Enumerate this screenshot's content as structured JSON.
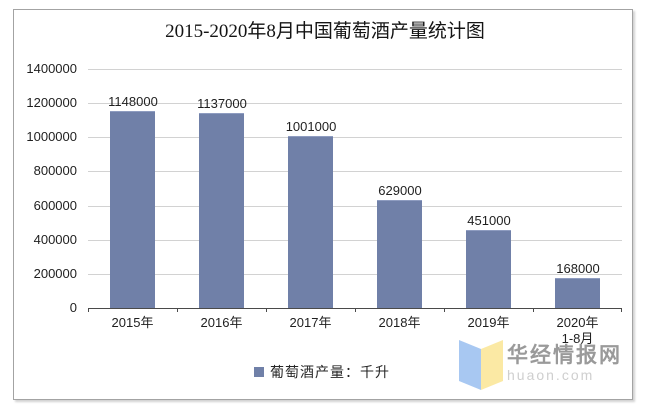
{
  "frame": {
    "border_color": "#a3a3a3"
  },
  "chart_data": {
    "type": "bar",
    "title": "2015-2020年8月中国葡萄酒产量统计图",
    "categories": [
      "2015年",
      "2016年",
      "2017年",
      "2018年",
      "2019年",
      "2020年\n1-8月"
    ],
    "series": [
      {
        "name": "葡萄酒产量：千升",
        "values": [
          1148000,
          1137000,
          1001000,
          629000,
          451000,
          168000
        ]
      }
    ],
    "data_labels": [
      "1148000",
      "1137000",
      "1001000",
      "629000",
      "451000",
      "168000"
    ],
    "xlabel": "",
    "ylabel": "",
    "ylim": [
      0,
      1400000
    ],
    "yticks": [
      0,
      200000,
      400000,
      600000,
      800000,
      1000000,
      1200000,
      1400000
    ],
    "grid": true,
    "legend_position": "bottom",
    "bar_color": "#7080a8",
    "bar_border_color": "#8e9cc0",
    "gridline_color": "#d2d2d2",
    "axis_color": "#4a4a4a"
  },
  "legend": {
    "label": "葡萄酒产量：千升",
    "marker_color": "#7080a8"
  },
  "watermark": {
    "name": "华经情报网",
    "domain": "huaon.com",
    "name_color": "#9a9a9a",
    "domain_color": "#cfcfcf",
    "logo_blue": "#a8c8f2",
    "logo_yellow": "#fbe9a4"
  }
}
